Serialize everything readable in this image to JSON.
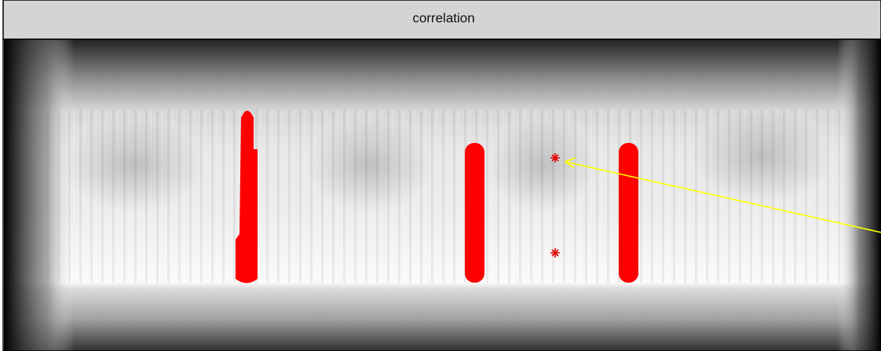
{
  "window": {
    "title": "correlation"
  }
}
